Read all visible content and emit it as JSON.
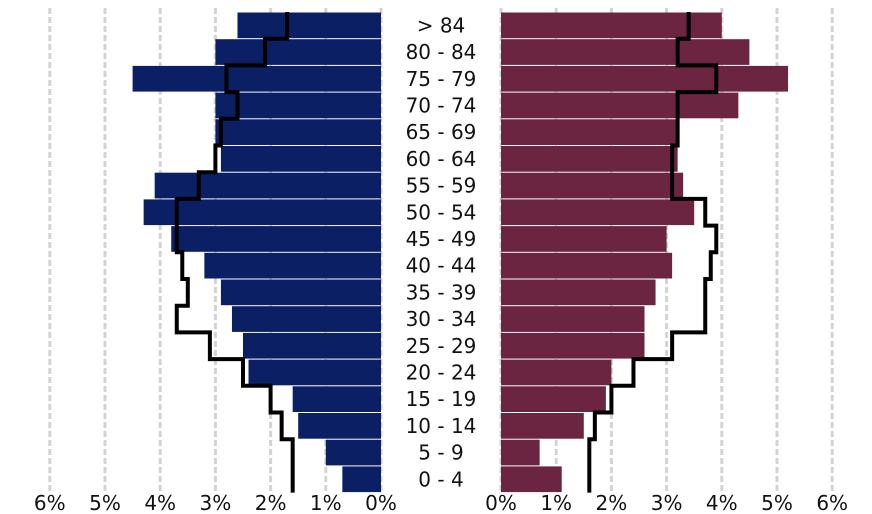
{
  "chart_data": {
    "type": "bar",
    "orientation": "horizontal",
    "layout": "population-pyramid",
    "categories": [
      "0 - 4",
      "5 - 9",
      "10 - 14",
      "15 - 19",
      "20 - 24",
      "25 - 29",
      "30 - 34",
      "35 - 39",
      "40 - 44",
      "45 - 49",
      "50 - 54",
      "55 - 59",
      "60 - 64",
      "65 - 69",
      "70 - 74",
      "75 - 79",
      "80 - 84",
      "> 84"
    ],
    "series": [
      {
        "side": "left",
        "style": "bar",
        "color": "#0a1f64",
        "values": [
          0.7,
          1.0,
          1.5,
          1.6,
          2.4,
          2.5,
          2.7,
          2.9,
          3.2,
          3.8,
          4.3,
          4.1,
          2.9,
          3.0,
          3.0,
          4.5,
          3.0,
          2.6
        ]
      },
      {
        "side": "left",
        "style": "step-outline",
        "color": "#000000",
        "values": [
          1.6,
          1.6,
          1.8,
          2.0,
          2.5,
          3.1,
          3.7,
          3.5,
          3.6,
          3.7,
          3.7,
          3.3,
          3.0,
          2.9,
          2.6,
          2.8,
          2.1,
          1.7
        ]
      },
      {
        "side": "right",
        "style": "bar",
        "color": "#6b2540",
        "values": [
          1.1,
          0.7,
          1.5,
          1.9,
          2.0,
          2.6,
          2.6,
          2.8,
          3.1,
          3.0,
          3.5,
          3.3,
          3.2,
          3.2,
          4.3,
          5.2,
          4.5,
          4.0
        ]
      },
      {
        "side": "right",
        "style": "step-outline",
        "color": "#000000",
        "values": [
          1.6,
          1.6,
          1.7,
          2.0,
          2.4,
          3.1,
          3.7,
          3.7,
          3.8,
          3.9,
          3.7,
          3.1,
          3.1,
          3.2,
          3.2,
          3.9,
          3.2,
          3.4
        ]
      }
    ],
    "x_ticks": [
      "6%",
      "5%",
      "4%",
      "3%",
      "2%",
      "1%",
      "0%",
      "0%",
      "1%",
      "2%",
      "3%",
      "4%",
      "5%",
      "6%"
    ],
    "xlim": [
      0,
      6
    ],
    "grid": true,
    "legend": "none",
    "title": "",
    "xlabel": "",
    "ylabel": ""
  }
}
